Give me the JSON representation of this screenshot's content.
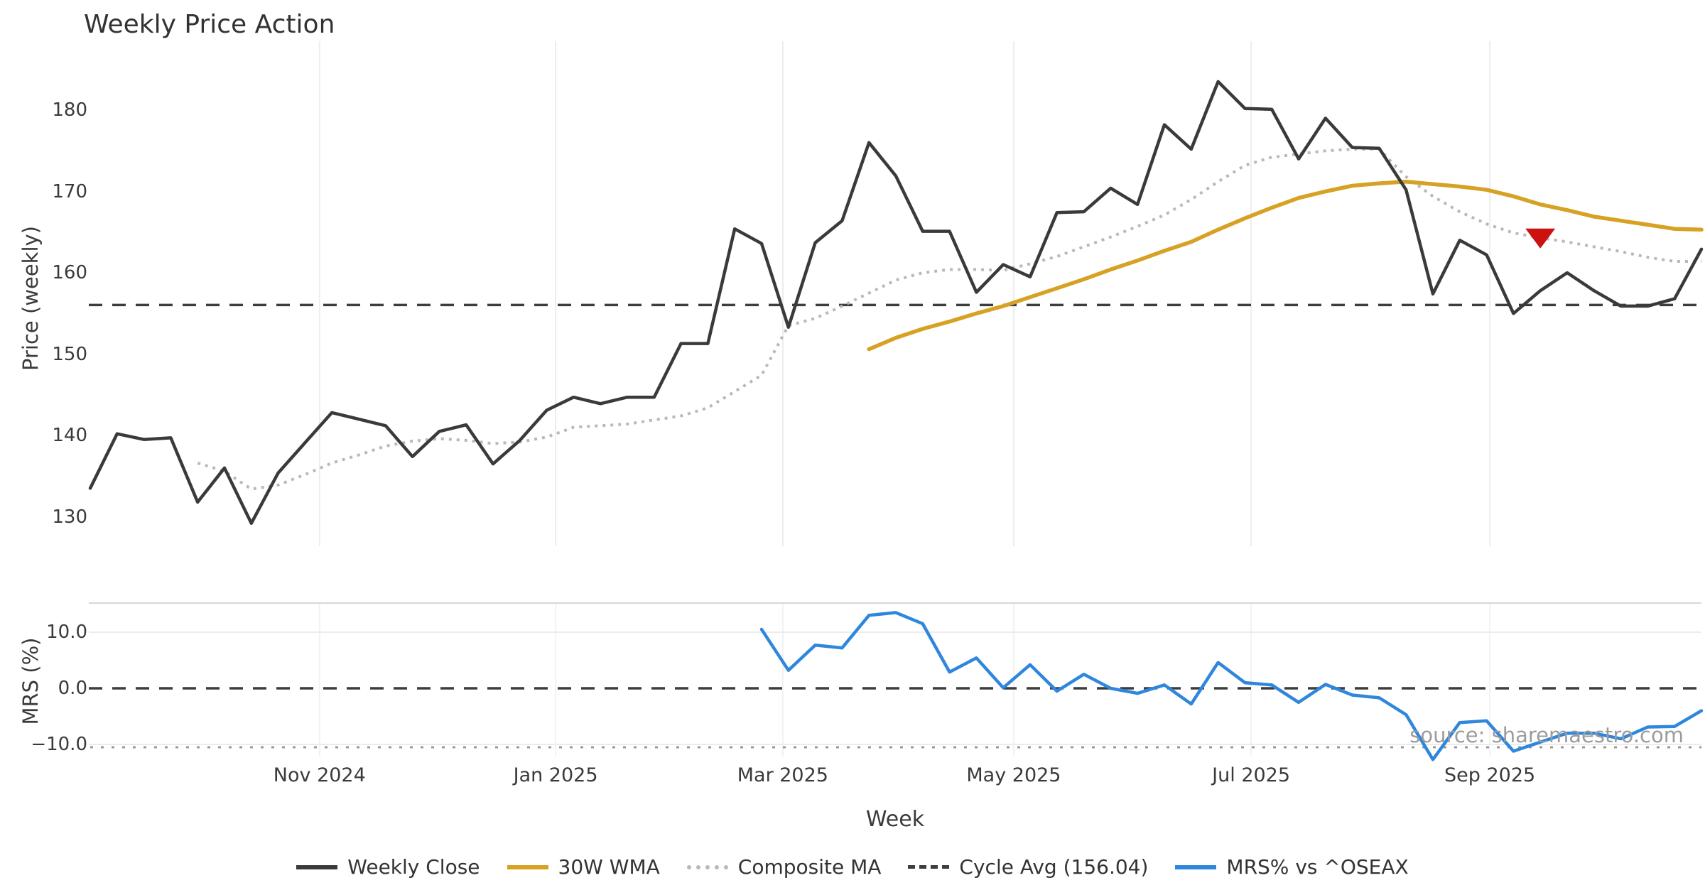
{
  "title": "Weekly Price Action",
  "watermark": "source: sharemaestro.com",
  "colors": {
    "weekly_close": "#3a3a3a",
    "wma_30w": "#d7a123",
    "composite_ma": "#b9b9b9",
    "cycle_avg": "#3d3d3d",
    "mrs_line": "#2e87dd",
    "sell_marker": "#cc1111",
    "gridline": "#ededef",
    "gridline_horizontal": "#ececec",
    "panel_top_rule": "#d8d8d8",
    "tick_strip": "#999999",
    "text": "#3a3a3a",
    "watermark_text": "#9c9c9c"
  },
  "price_panel": {
    "ylabel": "Price (weekly)",
    "y_ticks": [
      {
        "label": "180",
        "value": 180
      },
      {
        "label": "170",
        "value": 170
      },
      {
        "label": "160",
        "value": 160
      },
      {
        "label": "150",
        "value": 150
      },
      {
        "label": "140",
        "value": 140
      },
      {
        "label": "130",
        "value": 130
      }
    ],
    "cycle_avg_value": 156.04
  },
  "mrs_panel": {
    "ylabel": "MRS (%)",
    "y_ticks": [
      {
        "label": "10.0",
        "value": 10
      },
      {
        "label": "0.0",
        "value": 0
      },
      {
        "label": "−10.0",
        "value": -10
      }
    ],
    "zero_line_value": 0
  },
  "x_axis": {
    "label": "Week",
    "ticks": [
      {
        "label": "Nov 2024",
        "week": 8.54
      },
      {
        "label": "Jan 2025",
        "week": 17.33
      },
      {
        "label": "Mar 2025",
        "week": 25.79
      },
      {
        "label": "May 2025",
        "week": 34.39
      },
      {
        "label": "Jul 2025",
        "week": 43.23
      },
      {
        "label": "Sep 2025",
        "week": 52.12
      }
    ]
  },
  "legend": [
    {
      "label": "Weekly Close",
      "style": "solid",
      "color": "#3a3a3a"
    },
    {
      "label": "30W WMA",
      "style": "solid",
      "color": "#d7a123"
    },
    {
      "label": "Composite MA",
      "style": "dotted",
      "color": "#b9b9b9"
    },
    {
      "label": "Cycle Avg (156.04)",
      "style": "dashed",
      "color": "#3d3d3d"
    },
    {
      "label": "MRS% vs ^OSEAX",
      "style": "solid",
      "color": "#2e87dd"
    }
  ],
  "chart_data": [
    {
      "type": "line",
      "title": "Weekly Price Action",
      "xlabel": "Week",
      "ylabel": "Price (weekly)",
      "x_unit": "week_index",
      "x_tick_labels": [
        "Nov 2024",
        "Jan 2025",
        "Mar 2025",
        "May 2025",
        "Jul 2025",
        "Sep 2025"
      ],
      "x_tick_weeks": [
        8.54,
        17.33,
        25.79,
        34.39,
        43.23,
        52.12
      ],
      "ylim": [
        126,
        188
      ],
      "y_ticks": [
        130,
        140,
        150,
        160,
        170,
        180
      ],
      "grid": "vertical-only",
      "legend_position": "bottom-center",
      "series": [
        {
          "name": "Weekly Close",
          "start_week": 0,
          "values": [
            133.5,
            140.2,
            139.5,
            139.7,
            131.8,
            136.0,
            129.2,
            135.4,
            139.1,
            142.8,
            142.0,
            141.2,
            137.4,
            140.5,
            141.3,
            136.5,
            139.4,
            143.1,
            144.7,
            143.9,
            144.7,
            144.7,
            151.3,
            151.3,
            165.4,
            163.6,
            153.3,
            163.7,
            166.4,
            176.0,
            171.9,
            165.1,
            165.1,
            157.6,
            161.0,
            159.5,
            167.4,
            167.5,
            170.4,
            168.4,
            178.2,
            175.2,
            183.5,
            180.2,
            180.1,
            174.0,
            179.0,
            175.4,
            175.3,
            170.2,
            157.4,
            164.0,
            162.2,
            155.0,
            157.8,
            160.0,
            157.8,
            155.9,
            155.9,
            156.8,
            162.9
          ]
        },
        {
          "name": "30W WMA",
          "start_week": 29,
          "values": [
            150.6,
            152.0,
            153.1,
            154.0,
            155.0,
            155.9,
            157.0,
            158.1,
            159.2,
            160.4,
            161.5,
            162.7,
            163.8,
            165.3,
            166.7,
            168.0,
            169.2,
            170.0,
            170.7,
            171.0,
            171.2,
            170.9,
            170.6,
            170.2,
            169.4,
            168.4,
            167.7,
            166.9,
            166.4,
            165.9,
            165.4,
            165.3
          ]
        },
        {
          "name": "Composite MA",
          "start_week": 4,
          "values": [
            136.6,
            135.6,
            133.4,
            133.9,
            135.2,
            136.6,
            137.6,
            138.7,
            139.3,
            139.6,
            139.4,
            139.0,
            139.2,
            139.8,
            141.0,
            141.2,
            141.4,
            141.9,
            142.4,
            143.4,
            145.4,
            147.4,
            153.5,
            154.4,
            155.9,
            157.5,
            159.1,
            160.0,
            160.4,
            160.4,
            160.3,
            161.1,
            162.0,
            163.2,
            164.4,
            165.7,
            167.1,
            169.0,
            171.2,
            173.2,
            174.2,
            174.6,
            175.0,
            175.2,
            175.2,
            171.8,
            169.4,
            167.5,
            166.0,
            164.9,
            164.3,
            163.8,
            163.2,
            162.6,
            161.9,
            161.4,
            161.4
          ]
        },
        {
          "name": "Cycle Avg",
          "type": "hline",
          "value": 156.04
        }
      ],
      "markers": [
        {
          "name": "sell-signal",
          "symbol": "triangle-down",
          "week": 54,
          "value": 164.3,
          "color": "#cc1111"
        }
      ]
    },
    {
      "type": "line",
      "xlabel": "Week",
      "ylabel": "MRS (%)",
      "x_unit": "week_index",
      "ylim": [
        -14,
        15
      ],
      "y_ticks": [
        -10.0,
        0.0,
        10.0
      ],
      "series": [
        {
          "name": "MRS% vs ^OSEAX",
          "start_week": 25,
          "values": [
            10.5,
            3.2,
            7.7,
            7.2,
            13.0,
            13.5,
            11.5,
            2.9,
            5.4,
            0.1,
            4.2,
            -0.5,
            2.5,
            0.0,
            -0.9,
            0.6,
            -2.8,
            4.6,
            1.0,
            0.6,
            -2.5,
            0.7,
            -1.2,
            -1.7,
            -4.7,
            -12.7,
            -6.1,
            -5.8,
            -11.2,
            -9.6,
            -8.0,
            -8.0,
            -9.0,
            -6.9,
            -6.8,
            -4.0
          ]
        },
        {
          "name": "Zero line",
          "type": "hline",
          "value": 0.0
        }
      ]
    }
  ]
}
